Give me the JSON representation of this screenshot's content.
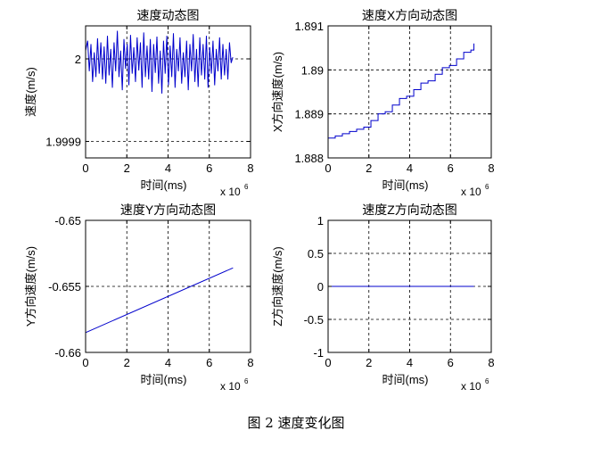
{
  "figure": {
    "caption": "图 2  速度变化图"
  },
  "chart_data": [
    {
      "type": "line",
      "title": "速度动态图",
      "xlabel": "时间(ms)",
      "ylabel": "速度(m/s)",
      "x_multiplier": {
        "base": "x 10",
        "exponent": "6"
      },
      "xlim": [
        0,
        8
      ],
      "ylim": [
        1.99988,
        2.00004
      ],
      "xticks": [
        0,
        2,
        4,
        6,
        8
      ],
      "yticks": [
        1.9999,
        2
      ],
      "ytick_labels": [
        "1.9999",
        "2"
      ],
      "grid": true,
      "color": "#0000cc",
      "series": [
        {
          "x": [
            0,
            0.1,
            0.18,
            0.26,
            0.34,
            0.42,
            0.5,
            0.58,
            0.66,
            0.74,
            0.82,
            0.9,
            0.98,
            1.06,
            1.14,
            1.22,
            1.3,
            1.38,
            1.46,
            1.54,
            1.62,
            1.7,
            1.78,
            1.86,
            1.94,
            2.02,
            2.1,
            2.18,
            2.26,
            2.34,
            2.42,
            2.5,
            2.58,
            2.66,
            2.74,
            2.82,
            2.9,
            2.98,
            3.06,
            3.14,
            3.22,
            3.3,
            3.38,
            3.46,
            3.54,
            3.62,
            3.7,
            3.78,
            3.86,
            3.94,
            4.02,
            4.1,
            4.18,
            4.26,
            4.34,
            4.42,
            4.5,
            4.58,
            4.66,
            4.74,
            4.82,
            4.9,
            4.98,
            5.06,
            5.14,
            5.22,
            5.3,
            5.38,
            5.46,
            5.54,
            5.62,
            5.7,
            5.78,
            5.86,
            5.94,
            6.02,
            6.1,
            6.18,
            6.26,
            6.34,
            6.42,
            6.5,
            6.58,
            6.66,
            6.74,
            6.82,
            6.9,
            6.98,
            7.06,
            7.14
          ],
          "y": [
            2.00001,
            2.000022,
            1.999985,
            2.000018,
            1.999972,
            2.000008,
            1.999978,
            2.000025,
            1.999982,
            2.00002,
            1.999975,
            2.000015,
            1.99997,
            2.000028,
            1.99998,
            2.000012,
            1.999965,
            2.00002,
            1.999985,
            2.000034,
            1.999978,
            2.00001,
            1.999962,
            2.000024,
            1.999988,
            2.000018,
            1.999968,
            2.000029,
            1.999982,
            2.000014,
            1.999972,
            2.000026,
            1.999986,
            2.00002,
            1.999965,
            2.000032,
            1.999978,
            2.000016,
            1.999975,
            2.000024,
            1.99996,
            2.000018,
            1.999983,
            2.000027,
            1.99997,
            2.00001,
            1.999958,
            2.000022,
            1.999982,
            2.000028,
            1.999968,
            2.000016,
            1.999978,
            2.000031,
            1.999965,
            2.000012,
            1.999985,
            2.000026,
            1.99997,
            2.000008,
            1.999978,
            2.000022,
            1.999962,
            2.000018,
            1.999985,
            2.00003,
            1.999972,
            2.000012,
            1.999966,
            2.000026,
            1.99998,
            2.000018,
            1.999975,
            2.000028,
            1.999965,
            2.000014,
            1.999982,
            2.000022,
            1.999968,
            2.000012,
            1.999985,
            2.000026,
            1.999975,
            2.000018,
            1.99998,
            2.000012,
            1.999975,
            2.00002,
            1.999995,
            2.000002
          ]
        }
      ]
    },
    {
      "type": "line",
      "title": "速度X方向动态图",
      "xlabel": "时间(ms)",
      "ylabel": "X方向速度(m/s)",
      "x_multiplier": {
        "base": "x 10",
        "exponent": "6"
      },
      "xlim": [
        0,
        8
      ],
      "ylim": [
        1.888,
        1.891
      ],
      "xticks": [
        0,
        2,
        4,
        6,
        8
      ],
      "yticks": [
        1.888,
        1.889,
        1.89,
        1.891
      ],
      "ytick_labels": [
        "1.888",
        "1.889",
        "1.89",
        "1.891"
      ],
      "grid": true,
      "color": "#0000cc",
      "step": true,
      "series": [
        {
          "x": [
            0,
            0.35,
            0.7,
            1.05,
            1.4,
            1.75,
            2.1,
            2.45,
            2.8,
            3.15,
            3.5,
            3.85,
            4.2,
            4.55,
            4.9,
            5.25,
            5.6,
            5.95,
            6.3,
            6.65,
            7.0,
            7.15
          ],
          "y": [
            1.88845,
            1.8885,
            1.88855,
            1.8886,
            1.88865,
            1.8887,
            1.88885,
            1.889,
            1.88905,
            1.8892,
            1.88935,
            1.8894,
            1.88955,
            1.8897,
            1.88975,
            1.8899,
            1.89005,
            1.8901,
            1.89025,
            1.8904,
            1.89045,
            1.8906
          ]
        }
      ]
    },
    {
      "type": "line",
      "title": "速度Y方向动态图",
      "xlabel": "时间(ms)",
      "ylabel": "Y方向速度(m/s)",
      "x_multiplier": {
        "base": "x 10",
        "exponent": "6"
      },
      "xlim": [
        0,
        8
      ],
      "ylim": [
        -0.66,
        -0.65
      ],
      "xticks": [
        0,
        2,
        4,
        6,
        8
      ],
      "yticks": [
        -0.66,
        -0.655,
        -0.65
      ],
      "ytick_labels": [
        "-0.66",
        "-0.655",
        "-0.65"
      ],
      "grid": true,
      "color": "#0000cc",
      "series": [
        {
          "x": [
            0,
            7.15
          ],
          "y": [
            -0.6585,
            -0.6536
          ]
        }
      ]
    },
    {
      "type": "line",
      "title": "速度Z方向动态图",
      "xlabel": "时间(ms)",
      "ylabel": "Z方向速度(m/s)",
      "x_multiplier": {
        "base": "x 10",
        "exponent": "6"
      },
      "xlim": [
        0,
        8
      ],
      "ylim": [
        -1,
        1
      ],
      "xticks": [
        0,
        2,
        4,
        6,
        8
      ],
      "yticks": [
        -1,
        -0.5,
        0,
        0.5,
        1
      ],
      "ytick_labels": [
        "-1",
        "-0.5",
        "0",
        "0.5",
        "1"
      ],
      "grid": true,
      "color": "#0000cc",
      "series": [
        {
          "x": [
            0,
            7.15
          ],
          "y": [
            0,
            0
          ]
        }
      ]
    }
  ]
}
